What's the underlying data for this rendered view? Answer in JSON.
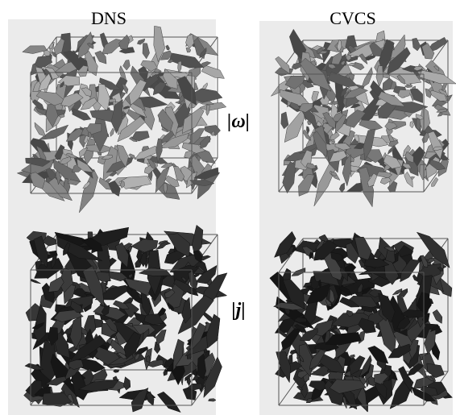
{
  "columns": [
    "DNS",
    "CVCS"
  ],
  "rows": [
    "|ω|",
    "|j|"
  ]
}
